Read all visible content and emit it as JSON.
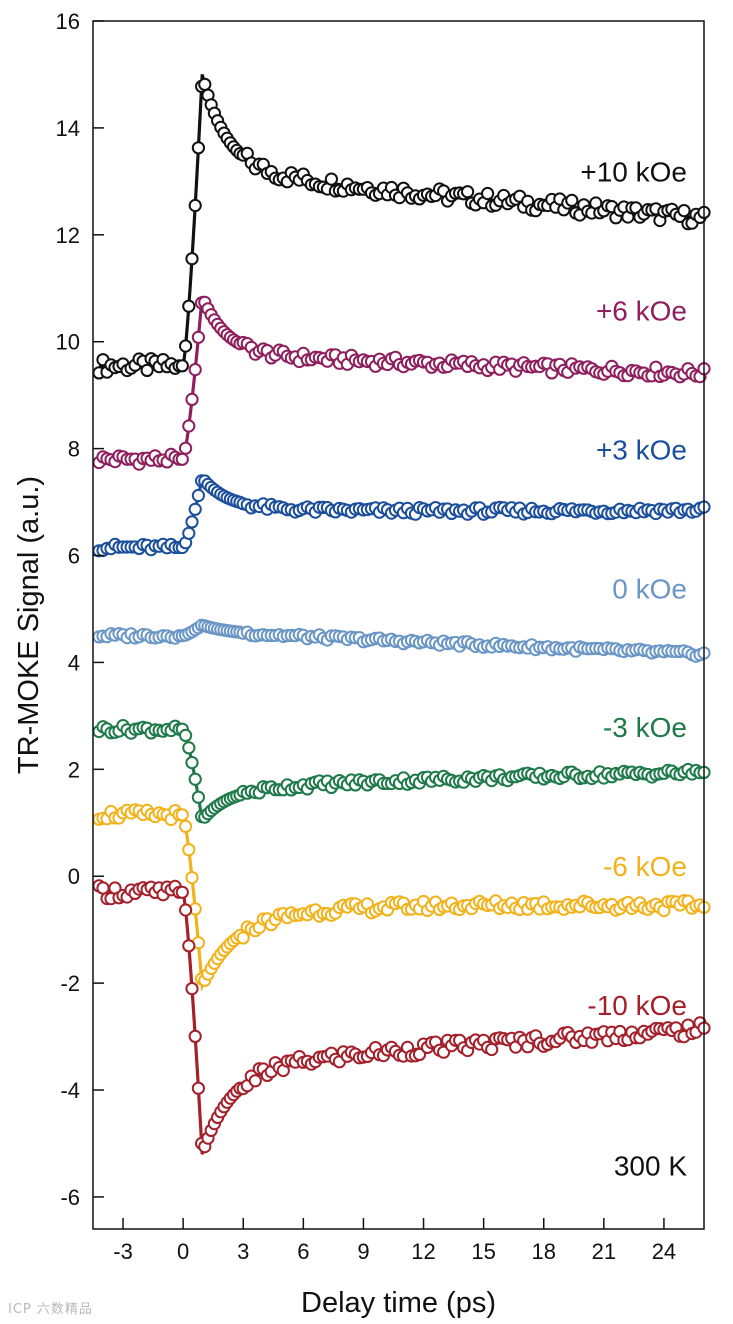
{
  "watermark": "ICP 六数精品",
  "chart_data": {
    "type": "scatter",
    "title": "",
    "xlabel": "Delay time (ps)",
    "ylabel": "TR-MOKE Signal (a.u.)",
    "xlim": [
      -4.5,
      26
    ],
    "ylim": [
      -6.6,
      16
    ],
    "xticks": [
      -3,
      0,
      3,
      6,
      9,
      12,
      15,
      18,
      21,
      24
    ],
    "yticks": [
      -6,
      -4,
      -2,
      0,
      2,
      4,
      6,
      8,
      10,
      12,
      14,
      16
    ],
    "annotation": "300 K",
    "series": [
      {
        "name": "+10 kOe",
        "color": "#111111",
        "base": 9.55,
        "peak": 15.0,
        "trough": 13.2,
        "tail_a": 13.0,
        "tail_b": 12.3,
        "fast": 0,
        "label_y": 13.0
      },
      {
        "name": "+6 kOe",
        "color": "#8e1f5e",
        "base": 7.8,
        "peak": 10.85,
        "trough": 9.75,
        "tail_a": 9.7,
        "tail_b": 9.4,
        "fast": 0,
        "label_y": 10.4
      },
      {
        "name": "+3 kOe",
        "color": "#1b4f9c",
        "base": 6.15,
        "peak": 7.45,
        "trough": 6.9,
        "tail_a": 6.8,
        "tail_b": 6.85,
        "fast": 0,
        "label_y": 7.8
      },
      {
        "name": "0 kOe",
        "color": "#6a96c6",
        "base": 4.5,
        "peak": 4.7,
        "trough": 4.55,
        "tail_a": 4.5,
        "tail_b": 4.15,
        "fast": 0,
        "label_y": 5.2
      },
      {
        "name": "-3 kOe",
        "color": "#1f7a4a",
        "base": 2.75,
        "peak": 1.05,
        "trough": 1.6,
        "tail_a": 1.75,
        "tail_b": 1.95,
        "fast": 0,
        "label_y": 2.6
      },
      {
        "name": "-6 kOe",
        "color": "#f2b21b",
        "base": 1.15,
        "peak": -2.05,
        "trough": -0.9,
        "tail_a": -0.45,
        "tail_b": -0.55,
        "fast": 1,
        "label_y": 0.0
      },
      {
        "name": "-10 kOe",
        "color": "#a4202a",
        "base": -0.3,
        "peak": -5.2,
        "trough": -3.6,
        "tail_a": -3.4,
        "tail_b": -2.85,
        "fast": 1,
        "label_y": -2.6
      }
    ]
  }
}
